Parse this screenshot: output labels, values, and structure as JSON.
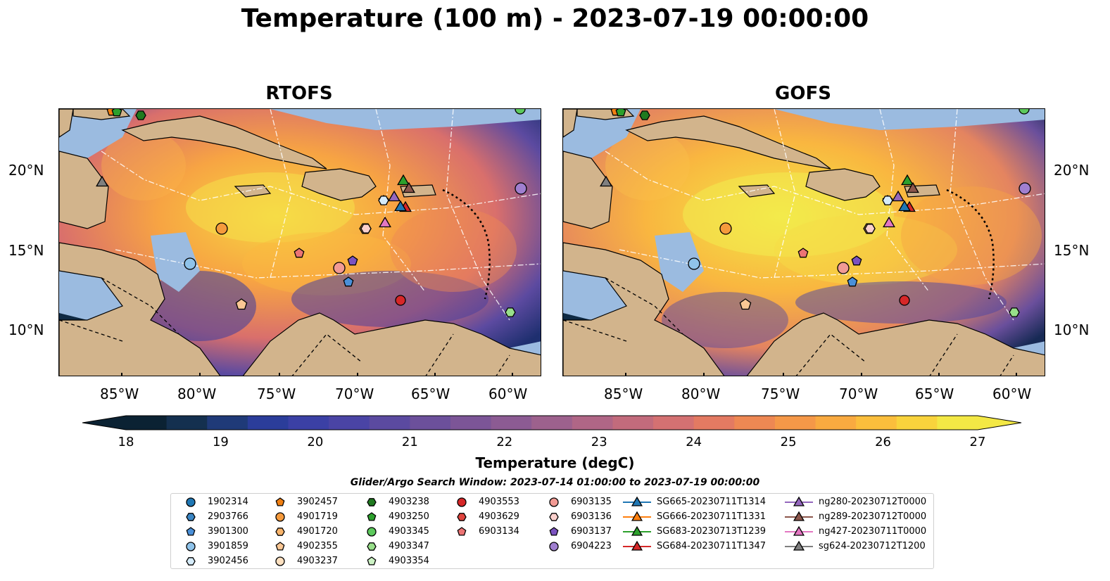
{
  "title": "Temperature (100 m) - 2023-07-19 00:00:00",
  "panels": [
    {
      "title": "RTOFS"
    },
    {
      "title": "GOFS"
    }
  ],
  "lon_ticks": [
    "85°W",
    "80°W",
    "75°W",
    "70°W",
    "65°W",
    "60°W"
  ],
  "lat_ticks": [
    "20°N",
    "15°N",
    "10°N"
  ],
  "colorbar": {
    "label": "Temperature (degC)",
    "min": 18,
    "max": 27,
    "ticks": [
      "18",
      "19",
      "20",
      "21",
      "22",
      "23",
      "24",
      "25",
      "26",
      "27"
    ],
    "colors": [
      "#0b2233",
      "#14304f",
      "#1f3a78",
      "#2b3d9a",
      "#3b40a5",
      "#4a44a5",
      "#5b4aa0",
      "#6c509b",
      "#7c5597",
      "#8c5b93",
      "#9d618d",
      "#b06686",
      "#c26b7c",
      "#d47172",
      "#e37a62",
      "#ee8853",
      "#f59848",
      "#f9aa40",
      "#fbbe3c",
      "#f9d33c",
      "#f3e845"
    ]
  },
  "search_window": "Glider/Argo Search Window: 2023-07-14 01:00:00 to 2023-07-19 00:00:00",
  "legend": [
    {
      "label": "1902314",
      "marker": "circle",
      "color": "#1f77b4"
    },
    {
      "label": "2903766",
      "marker": "hexagon",
      "color": "#3b86c4"
    },
    {
      "label": "3901300",
      "marker": "pentagon",
      "color": "#4a90d9"
    },
    {
      "label": "3901859",
      "marker": "circle",
      "color": "#8fc3ea"
    },
    {
      "label": "3902456",
      "marker": "hexagon",
      "color": "#d6ecfa"
    },
    {
      "label": "3902457",
      "marker": "pentagon",
      "color": "#f07f12"
    },
    {
      "label": "4901719",
      "marker": "circle",
      "color": "#f59a3c"
    },
    {
      "label": "4901720",
      "marker": "hexagon",
      "color": "#f8b46b"
    },
    {
      "label": "4902355",
      "marker": "pentagon",
      "color": "#fbc794"
    },
    {
      "label": "4903237",
      "marker": "circle",
      "color": "#fde0c0"
    },
    {
      "label": "4903238",
      "marker": "hexagon",
      "color": "#1f7a1f"
    },
    {
      "label": "4903250",
      "marker": "pentagon",
      "color": "#2ca02c"
    },
    {
      "label": "4903345",
      "marker": "circle",
      "color": "#5cc95c"
    },
    {
      "label": "4903347",
      "marker": "hexagon",
      "color": "#98df8a"
    },
    {
      "label": "4903354",
      "marker": "pentagon",
      "color": "#ccf2c4"
    },
    {
      "label": "4903553",
      "marker": "circle",
      "color": "#d62728"
    },
    {
      "label": "4903629",
      "marker": "hexagon",
      "color": "#e0443e"
    },
    {
      "label": "6903134",
      "marker": "pentagon",
      "color": "#ec7474"
    },
    {
      "label": "6903135",
      "marker": "circle",
      "color": "#f29a94"
    },
    {
      "label": "6903136",
      "marker": "hexagon",
      "color": "#fbd0cc"
    },
    {
      "label": "6903137",
      "marker": "pentagon",
      "color": "#7b52c0"
    },
    {
      "label": "6904223",
      "marker": "circle",
      "color": "#a07fd0"
    },
    {
      "label": "SG665-20230711T1314",
      "marker": "triangle",
      "color": "#1f77b4"
    },
    {
      "label": "SG666-20230711T1331",
      "marker": "triangle",
      "color": "#ff7f0e"
    },
    {
      "label": "SG683-20230713T1239",
      "marker": "triangle",
      "color": "#2ca02c"
    },
    {
      "label": "SG684-20230711T1347",
      "marker": "triangle",
      "color": "#d62728"
    },
    {
      "label": "ng280-20230712T0000",
      "marker": "triangle",
      "color": "#9467bd"
    },
    {
      "label": "ng289-20230712T0000",
      "marker": "triangle",
      "color": "#8c564b"
    },
    {
      "label": "ng427-20230711T0000",
      "marker": "triangle",
      "color": "#e377c2"
    },
    {
      "label": "sg624-20230712T1200",
      "marker": "triangle",
      "color": "#7f7f7f"
    }
  ],
  "map_colors": {
    "land": "#d2b48c",
    "shelf": "#9bbbe0",
    "border": "#000000"
  }
}
